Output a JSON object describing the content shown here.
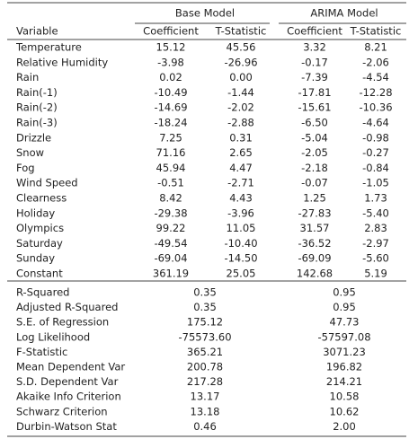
{
  "table": {
    "groups": [
      "Base Model",
      "ARIMA Model"
    ],
    "columns": [
      "Variable",
      "Coefficient",
      "T-Statistic",
      "Coefficient",
      "T-Statistic"
    ],
    "rows": [
      [
        "Temperature",
        "15.12",
        "45.56",
        "3.32",
        "8.21"
      ],
      [
        "Relative Humidity",
        "-3.98",
        "-26.96",
        "-0.17",
        "-2.06"
      ],
      [
        "Rain",
        "0.02",
        "0.00",
        "-7.39",
        "-4.54"
      ],
      [
        "Rain(-1)",
        "-10.49",
        "-1.44",
        "-17.81",
        "-12.28"
      ],
      [
        "Rain(-2)",
        "-14.69",
        "-2.02",
        "-15.61",
        "-10.36"
      ],
      [
        "Rain(-3)",
        "-18.24",
        "-2.88",
        "-6.50",
        "-4.64"
      ],
      [
        "Drizzle",
        "7.25",
        "0.31",
        "-5.04",
        "-0.98"
      ],
      [
        "Snow",
        "71.16",
        "2.65",
        "-2.05",
        "-0.27"
      ],
      [
        "Fog",
        "45.94",
        "4.47",
        "-2.18",
        "-0.84"
      ],
      [
        "Wind Speed",
        "-0.51",
        "-2.71",
        "-0.07",
        "-1.05"
      ],
      [
        "Clearness",
        "8.42",
        "4.43",
        "1.25",
        "1.73"
      ],
      [
        "Holiday",
        "-29.38",
        "-3.96",
        "-27.83",
        "-5.40"
      ],
      [
        "Olympics",
        "99.22",
        "11.05",
        "31.57",
        "2.83"
      ],
      [
        "Saturday",
        "-49.54",
        "-10.40",
        "-36.52",
        "-2.97"
      ],
      [
        "Sunday",
        "-69.04",
        "-14.50",
        "-69.09",
        "-5.60"
      ],
      [
        "Constant",
        "361.19",
        "25.05",
        "142.68",
        "5.19"
      ]
    ],
    "stats": [
      [
        "R-Squared",
        "0.35",
        "0.95"
      ],
      [
        "Adjusted R-Squared",
        "0.35",
        "0.95"
      ],
      [
        "S.E. of Regression",
        "175.12",
        "47.73"
      ],
      [
        "Log Likelihood",
        "-75573.60",
        "-57597.08"
      ],
      [
        "F-Statistic",
        "365.21",
        "3071.23"
      ],
      [
        "Mean Dependent Var",
        "200.78",
        "196.82"
      ],
      [
        "S.D. Dependent Var",
        "217.28",
        "214.21"
      ],
      [
        "Akaike Info Criterion",
        "13.17",
        "10.58"
      ],
      [
        "Schwarz Criterion",
        "13.18",
        "10.62"
      ],
      [
        "Durbin-Watson Stat",
        "0.46",
        "2.00"
      ]
    ]
  }
}
